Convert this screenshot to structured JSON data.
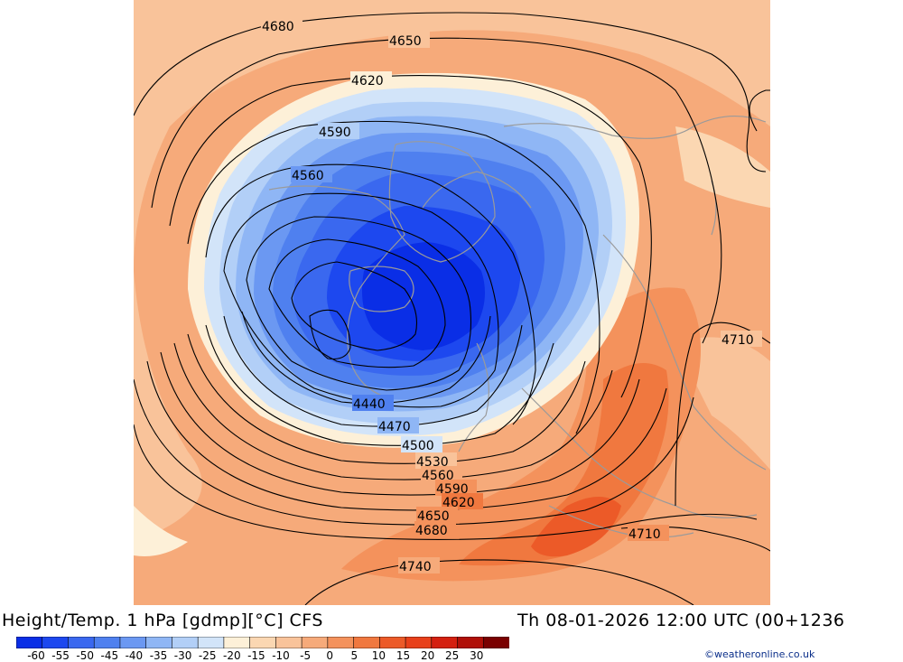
{
  "header": {
    "title": "Height/Temp. 1 hPa [gdmp][°C] CFS",
    "valid_time": "Th 08-01-2026 12:00 UTC (00+1236"
  },
  "credit": "©weatheronline.co.uk",
  "colorbar": {
    "labels": [
      "-60",
      "-55",
      "-50",
      "-45",
      "-40",
      "-35",
      "-30",
      "-25",
      "-20",
      "-15",
      "-10",
      "-5",
      "0",
      "5",
      "10",
      "15",
      "20",
      "25",
      "30"
    ],
    "colors": [
      "#0a2ee6",
      "#1d48ef",
      "#3a68ef",
      "#4f80ef",
      "#6b98f2",
      "#8fb6f5",
      "#b2cff7",
      "#d2e4f9",
      "#fdf0d8",
      "#fbd7b2",
      "#f9c39a",
      "#f6aa7a",
      "#f4925c",
      "#f0783f",
      "#ec5a28",
      "#e8401a",
      "#d42010",
      "#b01008",
      "#7a0000"
    ]
  },
  "contour_labels": [
    {
      "text": "4680"
    },
    {
      "text": "4650"
    },
    {
      "text": "4620"
    },
    {
      "text": "4590"
    },
    {
      "text": "4560"
    },
    {
      "text": "4440"
    },
    {
      "text": "4470"
    },
    {
      "text": "4500"
    },
    {
      "text": "4530"
    },
    {
      "text": "4560"
    },
    {
      "text": "4590"
    },
    {
      "text": "4620"
    },
    {
      "text": "4650"
    },
    {
      "text": "4680"
    },
    {
      "text": "4740"
    },
    {
      "text": "4710"
    },
    {
      "text": "4710"
    }
  ]
}
